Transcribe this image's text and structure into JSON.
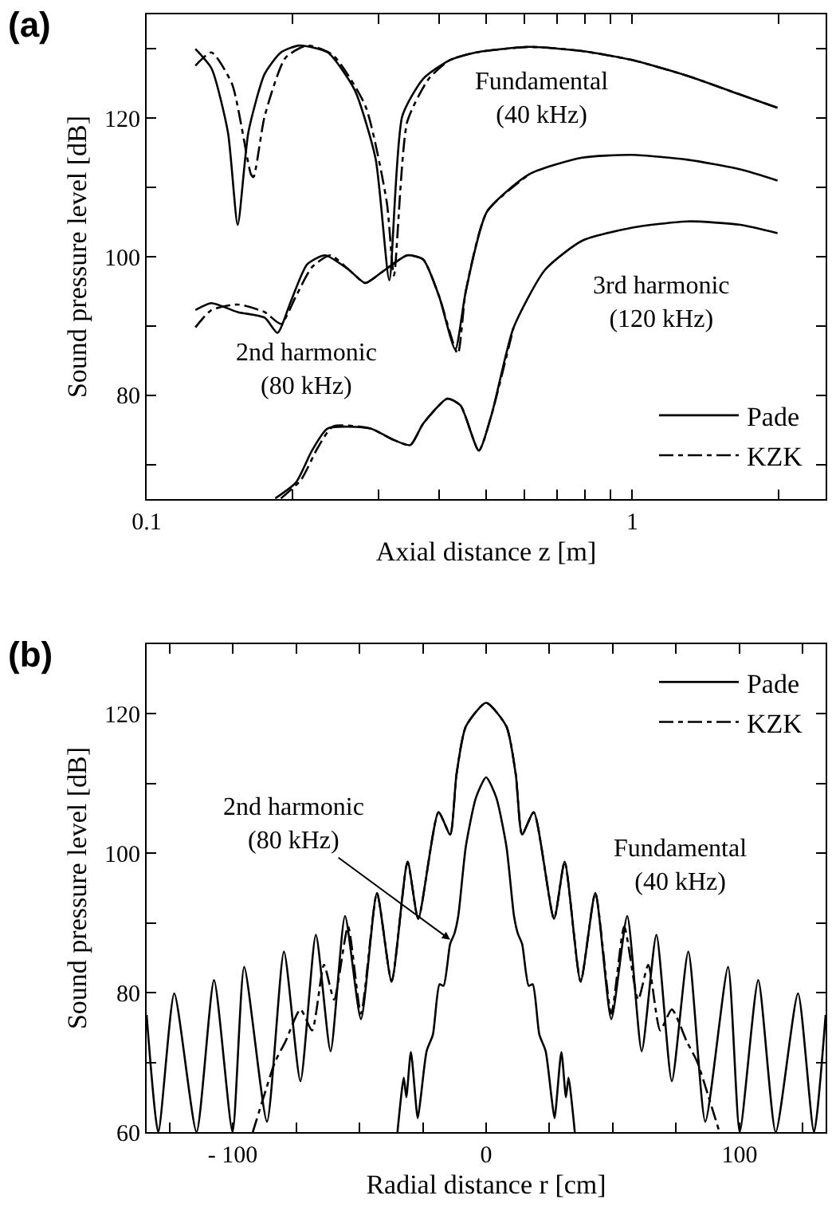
{
  "chart_data": [
    {
      "type": "line",
      "title": "(a)",
      "xlabel": "Axial distance z [m]",
      "ylabel": "Sound pressure level [dB]",
      "log": "x",
      "legend": "bottom right",
      "xlim": [
        0.1,
        2.5
      ],
      "ylim": [
        65,
        135
      ],
      "xticks": [
        0.1,
        {
          "value": 0.2,
          "label": null
        },
        {
          "value": 0.3,
          "label": null
        },
        {
          "value": 0.4,
          "label": null
        },
        {
          "value": 0.5,
          "label": null
        },
        {
          "value": 0.6,
          "label": null
        },
        {
          "value": 0.7,
          "label": null
        },
        {
          "value": 0.8,
          "label": null
        },
        {
          "value": 0.9,
          "label": null
        },
        1,
        {
          "value": 2,
          "label": null
        }
      ],
      "yticks": [
        {
          "value": 70,
          "label": null
        },
        80,
        {
          "value": 90,
          "label": null
        },
        100,
        {
          "value": 110,
          "label": null
        },
        120,
        {
          "value": 130,
          "label": null
        }
      ],
      "series": [
        {
          "name": "Pade",
          "color": "#000000",
          "line_style": "solid",
          "x": [
            0.126,
            0.136,
            0.147,
            0.154,
            0.162,
            0.175,
            0.189,
            0.206,
            0.236,
            0.268,
            0.296,
            0.316,
            0.336,
            0.371,
            0.421,
            0.477,
            0.613,
            0.788,
            1.0,
            1.3,
            1.67,
            1.99
          ],
          "values": [
            130,
            127.2,
            118,
            104.6,
            118,
            126.4,
            129.5,
            130.5,
            129.5,
            124.1,
            114.2,
            96.6,
            120.3,
            125.7,
            128.4,
            129.5,
            130.3,
            129.7,
            128.4,
            126.1,
            123.4,
            121.5
          ]
        },
        {
          "name": "KZK",
          "color": "#000000",
          "line_style": "dashdot",
          "x": [
            0.126,
            0.136,
            0.15,
            0.164,
            0.166,
            0.175,
            0.193,
            0.214,
            0.242,
            0.282,
            0.312,
            0.323,
            0.344,
            0.381,
            0.421,
            0.477,
            0.613,
            0.788,
            1.0,
            1.3,
            1.67,
            1.99
          ],
          "values": [
            127.6,
            129.5,
            124.9,
            111.9,
            111.5,
            120.3,
            128.7,
            130.5,
            129.1,
            121.8,
            108,
            97.3,
            119.5,
            125.7,
            128.4,
            129.5,
            130.3,
            129.7,
            128.4,
            126.1,
            123.4,
            121.5
          ]
        },
        {
          "color": "#000000",
          "line_style": "solid",
          "x": [
            0.126,
            0.136,
            0.154,
            0.175,
            0.186,
            0.198,
            0.214,
            0.233,
            0.261,
            0.282,
            0.304,
            0.344,
            0.371,
            0.4,
            0.432,
            0.454,
            0.502,
            0.613,
            0.788,
            1.0,
            1.3,
            1.67,
            1.99
          ],
          "values": [
            92.3,
            93.3,
            92.0,
            91.2,
            89.0,
            93.5,
            98.9,
            100.2,
            98.1,
            96.2,
            97.7,
            100.2,
            99.6,
            94.3,
            86.6,
            95.0,
            106.5,
            111.9,
            114.3,
            114.7,
            114.0,
            112.6,
            111.0
          ]
        },
        {
          "color": "#000000",
          "line_style": "dashdot",
          "x": [
            0.126,
            0.136,
            0.154,
            0.175,
            0.189,
            0.203,
            0.219,
            0.239,
            0.261,
            0.282,
            0.304,
            0.344,
            0.371,
            0.4,
            0.437,
            0.454,
            0.502,
            0.613
          ],
          "values": [
            89.8,
            92.3,
            93.1,
            92.0,
            90.3,
            94.3,
            98.5,
            100.2,
            98.1,
            96.2,
            97.7,
            100.2,
            99.6,
            94.3,
            86.0,
            95.0,
            106.5,
            111.9
          ]
        },
        {
          "color": "#000000",
          "line_style": "solid",
          "x": [
            0.184,
            0.203,
            0.219,
            0.236,
            0.289,
            0.319,
            0.349,
            0.371,
            0.416,
            0.443,
            0.483,
            0.514,
            0.569,
            0.661,
            0.788,
            1.0,
            1.3,
            1.67,
            1.99
          ],
          "values": [
            65.1,
            67.4,
            72.0,
            75.2,
            75.2,
            73.7,
            72.8,
            75.9,
            79.5,
            78.5,
            72.0,
            77.4,
            89.7,
            98.1,
            102.3,
            104.2,
            105.1,
            104.6,
            103.4
          ]
        },
        {
          "color": "#000000",
          "line_style": "dashdot",
          "x": [
            0.189,
            0.208,
            0.225,
            0.242,
            0.289,
            0.319,
            0.349,
            0.371,
            0.416,
            0.443,
            0.483,
            0.514,
            0.569
          ],
          "values": [
            65.1,
            67.8,
            72.4,
            75.5,
            75.2,
            73.7,
            72.8,
            75.9,
            79.5,
            78.5,
            72.0,
            77.4,
            89.7
          ]
        }
      ],
      "annotations": [
        "Fundamental\n(40 kHz)",
        "2nd harmonic\n(80 kHz)",
        "3rd harmonic\n(120 kHz)"
      ]
    },
    {
      "type": "line",
      "title": "(b)",
      "xlabel": "Radial distance r [cm]",
      "ylabel": "Sound pressure level [dB]",
      "legend": "top right",
      "xlim": [
        -134,
        134
      ],
      "ylim": [
        60,
        130
      ],
      "xticks": [
        {
          "value": -125,
          "label": null
        },
        {
          "value": -100,
          "label": "- 100"
        },
        {
          "value": -75,
          "label": null
        },
        {
          "value": -50,
          "label": null
        },
        {
          "value": -25,
          "label": null
        },
        0,
        {
          "value": 25,
          "label": null
        },
        {
          "value": 50,
          "label": null
        },
        {
          "value": 75,
          "label": null
        },
        100,
        {
          "value": 125,
          "label": null
        }
      ],
      "yticks": [
        60,
        {
          "value": 70,
          "label": null
        },
        80,
        {
          "value": 90,
          "label": null
        },
        100,
        {
          "value": 110,
          "label": null
        },
        120,
        {
          "value": 130,
          "label": null
        }
      ],
      "series": [
        {
          "name": "Pade",
          "color": "#000000",
          "line_style": "solid",
          "x": [
            -134,
            -129.4,
            -123.1,
            -114.3,
            -107.4,
            -100.1,
            -95.5,
            -86.5,
            -79.8,
            -73.3,
            -67.2,
            -61.4,
            -55.7,
            -49.4,
            -43.1,
            -37.3,
            -31.0,
            -26.8,
            -18.8,
            -14.2,
            -11.7,
            -8,
            0,
            8,
            11.7,
            14.2,
            18.8,
            26.8,
            31.0,
            37.3,
            43.1,
            49.4,
            55.7,
            61.4,
            67.2,
            73.3,
            79.8,
            86.5,
            95.5,
            100.1,
            107.4,
            114.3,
            123.1,
            129.4,
            134
          ],
          "values": [
            76.8,
            60,
            79.9,
            60,
            81.8,
            60,
            83.7,
            61.5,
            85.9,
            67.3,
            88.3,
            71.6,
            91.0,
            76.2,
            94.3,
            81.6,
            98.8,
            90.6,
            105.9,
            102.7,
            111.3,
            118.2,
            121.6,
            118.2,
            111.3,
            102.7,
            105.9,
            90.6,
            98.8,
            81.6,
            94.3,
            76.2,
            91.0,
            71.6,
            88.3,
            67.3,
            85.9,
            61.5,
            83.7,
            60,
            81.8,
            60,
            79.9,
            60,
            76.8
          ]
        },
        {
          "name": "KZK",
          "color": "#000000",
          "line_style": "dashdot",
          "x": [
            -92.1,
            -87.5,
            -83.4,
            -79.2,
            -73.3,
            -68.7,
            -64,
            -60,
            -54.5,
            -49.4,
            -43.1,
            -37.3,
            -31.0,
            -26.8,
            -18.8,
            -14.2,
            -11.7,
            -8,
            0,
            8,
            11.7,
            14.2,
            18.8,
            26.8,
            31.0,
            37.3,
            43.1,
            49.4,
            54.5,
            60,
            64,
            68.7,
            73.3,
            79.2,
            83.4,
            87.5,
            92.1
          ],
          "values": [
            60,
            65.4,
            70,
            73,
            77.6,
            74.6,
            84,
            79,
            89.5,
            77,
            94.3,
            81.6,
            98.8,
            90.6,
            105.9,
            102.7,
            111.3,
            118.2,
            121.6,
            118.2,
            111.3,
            102.7,
            105.9,
            90.6,
            98.8,
            81.6,
            94.3,
            77,
            89.5,
            79,
            84,
            74.6,
            77.6,
            73,
            70,
            65.4,
            60
          ]
        },
        {
          "color": "#000000",
          "line_style": "solid",
          "x": [
            -35,
            -32.5,
            -31.5,
            -29.7,
            -27,
            -25.8,
            -23.5,
            -21,
            -18.4,
            -16.8,
            -14.2,
            -12.5,
            -11,
            -8,
            -4,
            0,
            4,
            8,
            11,
            12.5,
            14.2,
            16.8,
            18.4,
            21,
            23.5,
            25.8,
            27,
            29.7,
            31.5,
            32.5,
            35
          ],
          "values": [
            60,
            67.8,
            65,
            71.5,
            62,
            65,
            71.6,
            74,
            81.2,
            81,
            87,
            88.5,
            91,
            101,
            108,
            110.9,
            108,
            101,
            91,
            88.5,
            87,
            81,
            81.2,
            74,
            71.6,
            65,
            62,
            71.5,
            65,
            67.8,
            60
          ]
        }
      ],
      "annotations": [
        {
          "text": "2nd harmonic\n(80 kHz)",
          "x": -14.2,
          "y": 87.6
        },
        "Fundamental\n(40 kHz)"
      ]
    }
  ]
}
